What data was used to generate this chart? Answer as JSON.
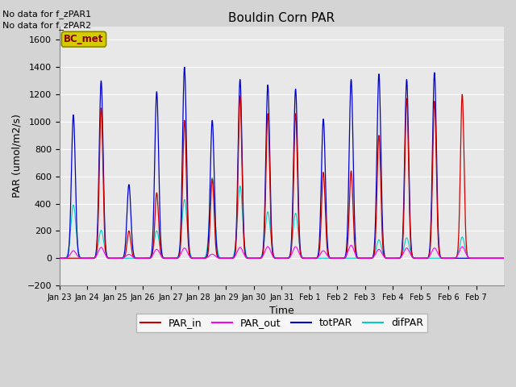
{
  "title": "Bouldin Corn PAR",
  "xlabel": "Time",
  "ylabel": "PAR (umol/m2/s)",
  "ylim": [
    -200,
    1700
  ],
  "yticks": [
    -200,
    0,
    200,
    400,
    600,
    800,
    1000,
    1200,
    1400,
    1600
  ],
  "fig_bg_color": "#d4d4d4",
  "plot_bg_color": "#e8e8e8",
  "no_data_text": [
    "No data for f_zPAR1",
    "No data for f_zPAR2"
  ],
  "bc_met_label": "BC_met",
  "bc_met_bg": "#d4cc00",
  "bc_met_edge": "#888800",
  "bc_met_text_color": "#880000",
  "day_labels": [
    "Jan 23",
    "Jan 24",
    "Jan 25",
    "Jan 26",
    "Jan 27",
    "Jan 28",
    "Jan 29",
    "Jan 30",
    "Jan 31",
    "Feb 1",
    "Feb 2",
    "Feb 3",
    "Feb 4",
    "Feb 5",
    "Feb 6",
    "Feb 7"
  ],
  "totPAR_peaks": [
    1050,
    1300,
    540,
    1220,
    1400,
    1010,
    1310,
    1270,
    1240,
    1020,
    1310,
    1350,
    1310,
    1360,
    0,
    0
  ],
  "PAR_in_peaks": [
    0,
    1100,
    200,
    480,
    1010,
    580,
    1190,
    1060,
    1060,
    630,
    640,
    900,
    1170,
    1150,
    1200,
    0
  ],
  "PAR_out_peaks": [
    55,
    80,
    28,
    65,
    75,
    30,
    80,
    85,
    85,
    55,
    95,
    65,
    75,
    75,
    85,
    0
  ],
  "difPAR_peaks": [
    390,
    205,
    0,
    200,
    430,
    590,
    530,
    340,
    330,
    0,
    0,
    135,
    150,
    0,
    155,
    0
  ],
  "colors": {
    "totPAR": "#0000cc",
    "PAR_in": "#cc0000",
    "PAR_out": "#ff00ff",
    "difPAR": "#00cccc"
  },
  "n_days": 16
}
